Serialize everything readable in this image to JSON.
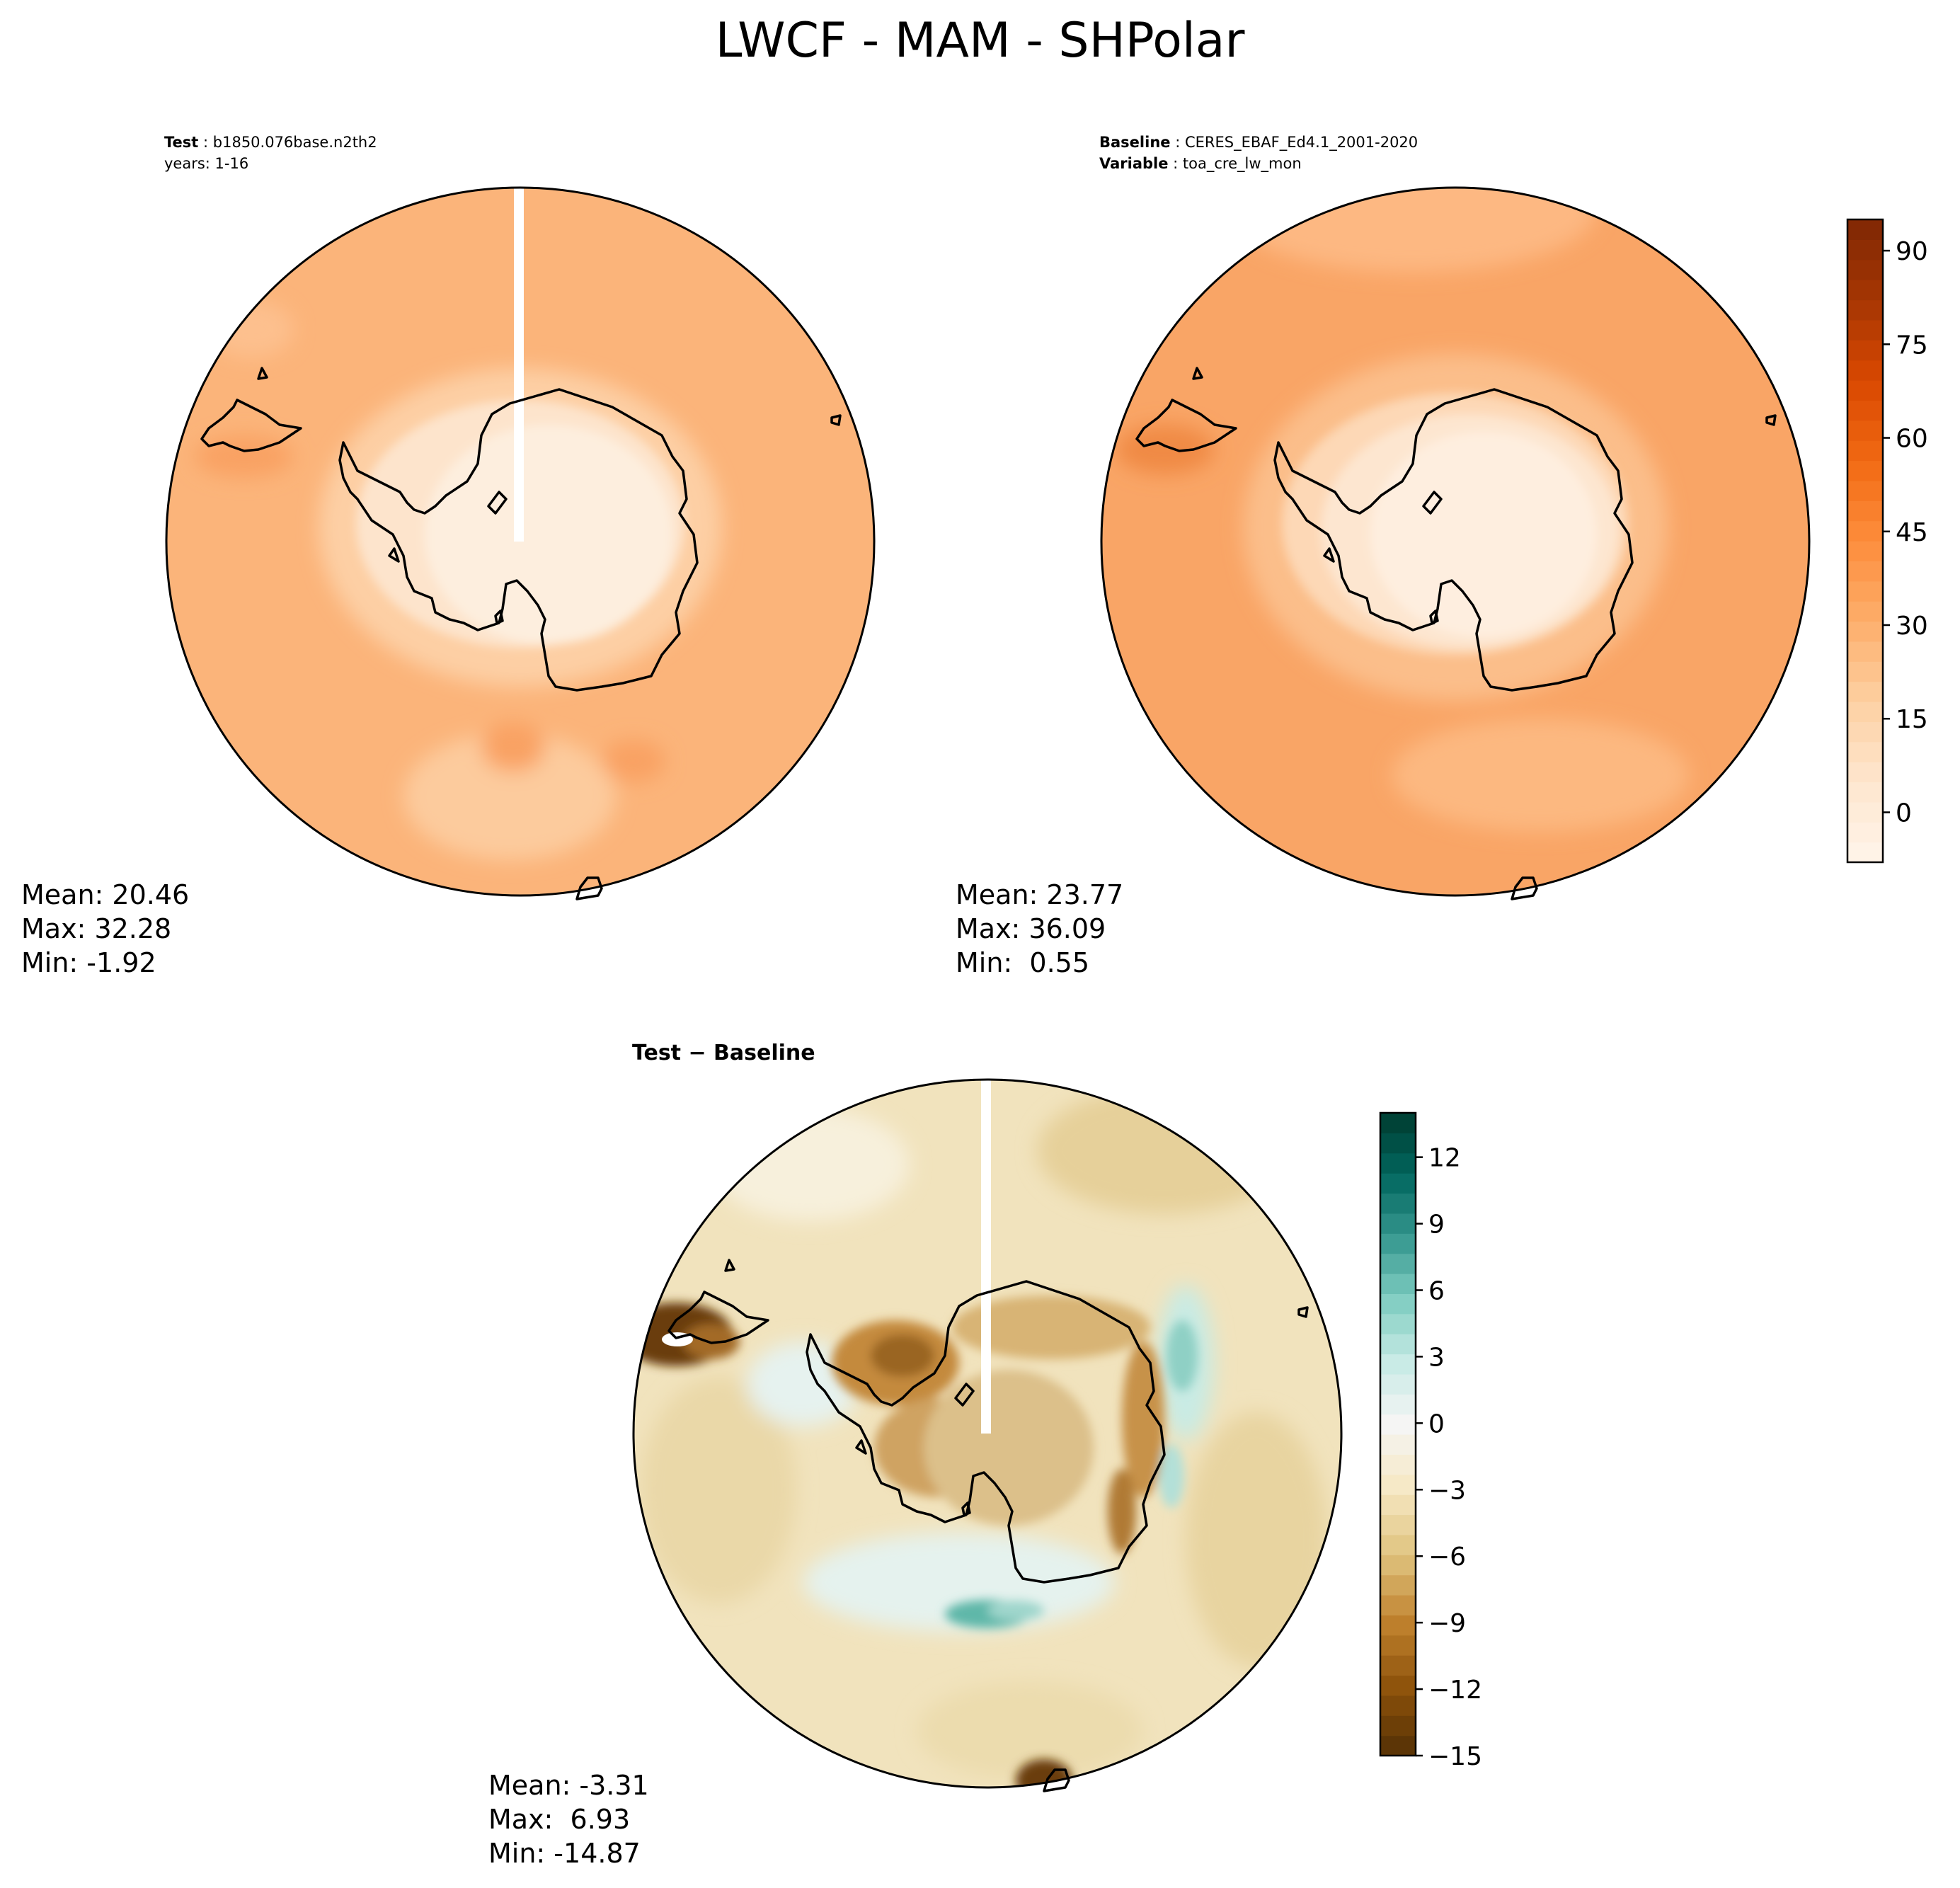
{
  "title": "LWCF - MAM - SHPolar",
  "test_panel": {
    "header_label": "Test",
    "header_value": "b1850.076base.n2th2",
    "years_line": "years: 1-16",
    "mean": "Mean: 20.46",
    "max": "Max: 32.28",
    "min": "Min: -1.92"
  },
  "baseline_panel": {
    "header_label": "Baseline",
    "header_value": "CERES_EBAF_Ed4.1_2001-2020",
    "variable_label": "Variable",
    "variable_value": "toa_cre_lw_mon",
    "mean": "Mean: 23.77",
    "max": "Max: 36.09",
    "min": "Min:  0.55"
  },
  "diff_panel": {
    "header": "Test − Baseline",
    "mean": "Mean: -3.31",
    "max": "Max:  6.93",
    "min": "Min: -14.87"
  },
  "chart_data": [
    {
      "type": "heatmap",
      "projection": "south polar stereographic",
      "title": "Test: b1850.076base.n2th2, years: 1-16",
      "colormap": "Oranges",
      "shared_colorbar": {
        "ticks": [
          0,
          15,
          30,
          45,
          60,
          75,
          90
        ],
        "tick_labels": [
          "0",
          "15",
          "30",
          "45",
          "60",
          "75",
          "90"
        ],
        "range": [
          -8,
          95
        ]
      },
      "stats": {
        "mean": 20.46,
        "max": 32.28,
        "min": -1.92
      }
    },
    {
      "type": "heatmap",
      "projection": "south polar stereographic",
      "title": "Baseline: CERES_EBAF_Ed4.1_2001-2020, Variable: toa_cre_lw_mon",
      "colormap": "Oranges",
      "colorbar": {
        "ticks": [
          0,
          15,
          30,
          45,
          60,
          75,
          90
        ],
        "tick_labels": [
          "0",
          "15",
          "30",
          "45",
          "60",
          "75",
          "90"
        ],
        "range": [
          -8,
          95
        ]
      },
      "stats": {
        "mean": 23.77,
        "max": 36.09,
        "min": 0.55
      }
    },
    {
      "type": "heatmap",
      "projection": "south polar stereographic",
      "title": "Test − Baseline",
      "colormap": "BrBG",
      "colorbar": {
        "ticks": [
          -15,
          -12,
          -9,
          -6,
          -3,
          0,
          3,
          6,
          9,
          12
        ],
        "tick_labels": [
          "−15",
          "−12",
          "−9",
          "−6",
          "−3",
          "0",
          "3",
          "6",
          "9",
          "12"
        ],
        "range": [
          -15,
          14
        ]
      },
      "stats": {
        "mean": -3.31,
        "max": 6.93,
        "min": -14.87
      }
    }
  ],
  "colors": {
    "oranges": [
      "#fff5eb",
      "#fee6ce",
      "#fdd0a2",
      "#fdae6b",
      "#fd8d3c",
      "#f16913",
      "#d94801",
      "#a63603",
      "#7f2704"
    ],
    "brbg_neg": [
      "#f5f5f5",
      "#f6e8c3",
      "#dfc27d",
      "#bf812d",
      "#8c510a",
      "#543005"
    ],
    "brbg_pos": [
      "#f5f5f5",
      "#c7eae5",
      "#80cdc1",
      "#35978f",
      "#01665e",
      "#003c30"
    ]
  }
}
